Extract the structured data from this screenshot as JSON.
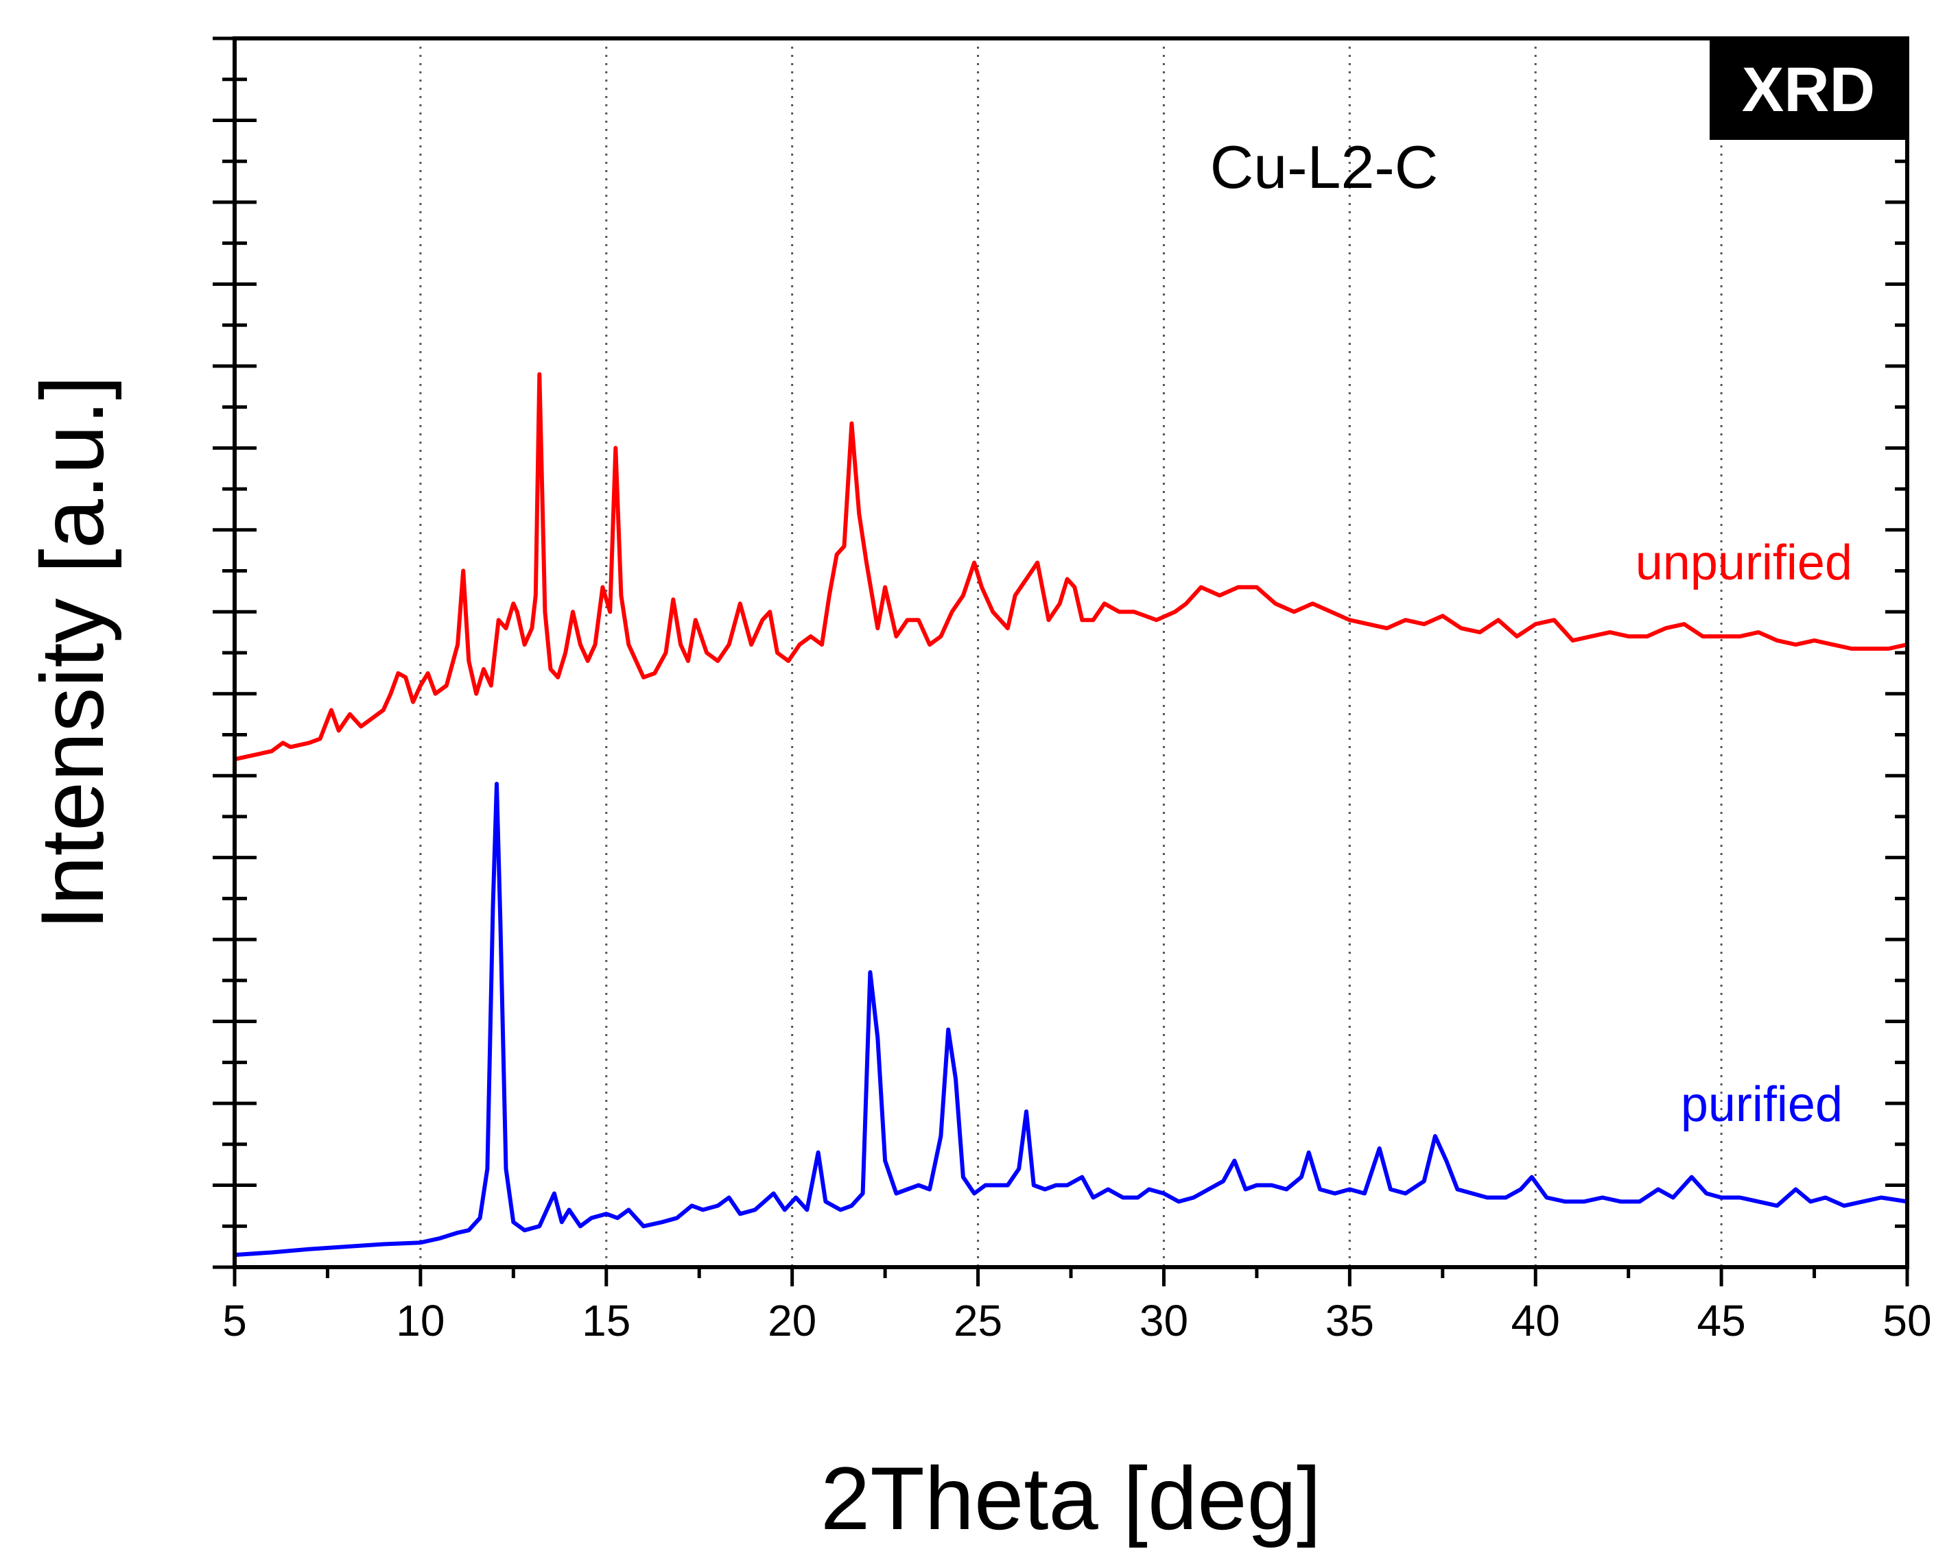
{
  "chart_data": {
    "type": "line",
    "title": "Cu-L2-C",
    "badge": "XRD",
    "xlabel": "2Theta [deg]",
    "ylabel": "Intensity [a.u.]",
    "xlim": [
      5,
      50
    ],
    "ylim": [
      0,
      15
    ],
    "x_ticks": [
      5,
      10,
      15,
      20,
      25,
      30,
      35,
      40,
      45,
      50
    ],
    "x_tick_labels": [
      "5",
      "10",
      "15",
      "20",
      "25",
      "30",
      "35",
      "40",
      "45",
      "50"
    ],
    "grid": "vertical dotted",
    "series": [
      {
        "name": "unpurified",
        "label": "unpurified",
        "color": "#ff0000",
        "points": [
          [
            5.0,
            6.2
          ],
          [
            6.0,
            6.3
          ],
          [
            6.3,
            6.4
          ],
          [
            6.5,
            6.35
          ],
          [
            7.0,
            6.4
          ],
          [
            7.3,
            6.45
          ],
          [
            7.6,
            6.8
          ],
          [
            7.8,
            6.55
          ],
          [
            8.1,
            6.75
          ],
          [
            8.4,
            6.6
          ],
          [
            9.0,
            6.8
          ],
          [
            9.2,
            7.0
          ],
          [
            9.4,
            7.25
          ],
          [
            9.6,
            7.2
          ],
          [
            9.8,
            6.9
          ],
          [
            10.0,
            7.1
          ],
          [
            10.2,
            7.25
          ],
          [
            10.4,
            7.0
          ],
          [
            10.7,
            7.1
          ],
          [
            11.0,
            7.6
          ],
          [
            11.15,
            8.5
          ],
          [
            11.3,
            7.4
          ],
          [
            11.5,
            7.0
          ],
          [
            11.7,
            7.3
          ],
          [
            11.9,
            7.1
          ],
          [
            12.1,
            7.9
          ],
          [
            12.3,
            7.8
          ],
          [
            12.5,
            8.1
          ],
          [
            12.6,
            8.0
          ],
          [
            12.8,
            7.6
          ],
          [
            13.0,
            7.8
          ],
          [
            13.1,
            8.2
          ],
          [
            13.2,
            10.9
          ],
          [
            13.35,
            8.0
          ],
          [
            13.5,
            7.3
          ],
          [
            13.7,
            7.2
          ],
          [
            13.9,
            7.5
          ],
          [
            14.1,
            8.0
          ],
          [
            14.3,
            7.6
          ],
          [
            14.5,
            7.4
          ],
          [
            14.7,
            7.6
          ],
          [
            14.9,
            8.3
          ],
          [
            15.1,
            8.0
          ],
          [
            15.25,
            10.0
          ],
          [
            15.4,
            8.2
          ],
          [
            15.6,
            7.6
          ],
          [
            15.8,
            7.4
          ],
          [
            16.0,
            7.2
          ],
          [
            16.3,
            7.25
          ],
          [
            16.6,
            7.5
          ],
          [
            16.8,
            8.15
          ],
          [
            17.0,
            7.6
          ],
          [
            17.2,
            7.4
          ],
          [
            17.4,
            7.9
          ],
          [
            17.7,
            7.5
          ],
          [
            18.0,
            7.4
          ],
          [
            18.3,
            7.6
          ],
          [
            18.6,
            8.1
          ],
          [
            18.9,
            7.6
          ],
          [
            19.2,
            7.9
          ],
          [
            19.4,
            8.0
          ],
          [
            19.6,
            7.5
          ],
          [
            19.9,
            7.4
          ],
          [
            20.2,
            7.6
          ],
          [
            20.5,
            7.7
          ],
          [
            20.8,
            7.6
          ],
          [
            21.0,
            8.2
          ],
          [
            21.2,
            8.7
          ],
          [
            21.4,
            8.8
          ],
          [
            21.6,
            10.3
          ],
          [
            21.8,
            9.2
          ],
          [
            22.0,
            8.6
          ],
          [
            22.3,
            7.8
          ],
          [
            22.5,
            8.3
          ],
          [
            22.8,
            7.7
          ],
          [
            23.1,
            7.9
          ],
          [
            23.4,
            7.9
          ],
          [
            23.7,
            7.6
          ],
          [
            24.0,
            7.7
          ],
          [
            24.3,
            8.0
          ],
          [
            24.6,
            8.2
          ],
          [
            24.9,
            8.6
          ],
          [
            25.1,
            8.3
          ],
          [
            25.4,
            8.0
          ],
          [
            25.8,
            7.8
          ],
          [
            26.0,
            8.2
          ],
          [
            26.3,
            8.4
          ],
          [
            26.6,
            8.6
          ],
          [
            26.9,
            7.9
          ],
          [
            27.2,
            8.1
          ],
          [
            27.4,
            8.4
          ],
          [
            27.6,
            8.3
          ],
          [
            27.8,
            7.9
          ],
          [
            28.1,
            7.9
          ],
          [
            28.4,
            8.1
          ],
          [
            28.8,
            8.0
          ],
          [
            29.2,
            8.0
          ],
          [
            29.5,
            7.95
          ],
          [
            29.8,
            7.9
          ],
          [
            30.3,
            8.0
          ],
          [
            30.6,
            8.1
          ],
          [
            31.0,
            8.3
          ],
          [
            31.5,
            8.2
          ],
          [
            32.0,
            8.3
          ],
          [
            32.5,
            8.3
          ],
          [
            33.0,
            8.1
          ],
          [
            33.5,
            8.0
          ],
          [
            34.0,
            8.1
          ],
          [
            34.5,
            8.0
          ],
          [
            35.0,
            7.9
          ],
          [
            35.5,
            7.85
          ],
          [
            36.0,
            7.8
          ],
          [
            36.5,
            7.9
          ],
          [
            37.0,
            7.85
          ],
          [
            37.5,
            7.95
          ],
          [
            38.0,
            7.8
          ],
          [
            38.5,
            7.75
          ],
          [
            39.0,
            7.9
          ],
          [
            39.5,
            7.7
          ],
          [
            40.0,
            7.85
          ],
          [
            40.5,
            7.9
          ],
          [
            41.0,
            7.65
          ],
          [
            41.5,
            7.7
          ],
          [
            42.0,
            7.75
          ],
          [
            42.5,
            7.7
          ],
          [
            43.0,
            7.7
          ],
          [
            43.5,
            7.8
          ],
          [
            44.0,
            7.85
          ],
          [
            44.5,
            7.7
          ],
          [
            45.0,
            7.7
          ],
          [
            45.5,
            7.7
          ],
          [
            46.0,
            7.75
          ],
          [
            46.5,
            7.65
          ],
          [
            47.0,
            7.6
          ],
          [
            47.5,
            7.65
          ],
          [
            48.0,
            7.6
          ],
          [
            48.5,
            7.55
          ],
          [
            49.0,
            7.55
          ],
          [
            49.5,
            7.55
          ],
          [
            50.0,
            7.6
          ]
        ]
      },
      {
        "name": "purified",
        "label": "purified",
        "color": "#0000ff",
        "points": [
          [
            5.0,
            0.15
          ],
          [
            6.0,
            0.18
          ],
          [
            7.0,
            0.22
          ],
          [
            8.0,
            0.25
          ],
          [
            9.0,
            0.28
          ],
          [
            10.0,
            0.3
          ],
          [
            10.5,
            0.35
          ],
          [
            11.0,
            0.42
          ],
          [
            11.3,
            0.45
          ],
          [
            11.6,
            0.6
          ],
          [
            11.8,
            1.2
          ],
          [
            11.95,
            4.4
          ],
          [
            12.05,
            5.9
          ],
          [
            12.15,
            4.2
          ],
          [
            12.3,
            1.2
          ],
          [
            12.5,
            0.55
          ],
          [
            12.8,
            0.45
          ],
          [
            13.2,
            0.5
          ],
          [
            13.6,
            0.9
          ],
          [
            13.8,
            0.55
          ],
          [
            14.0,
            0.7
          ],
          [
            14.3,
            0.5
          ],
          [
            14.6,
            0.6
          ],
          [
            15.0,
            0.65
          ],
          [
            15.3,
            0.6
          ],
          [
            15.6,
            0.7
          ],
          [
            16.0,
            0.5
          ],
          [
            16.5,
            0.55
          ],
          [
            16.9,
            0.6
          ],
          [
            17.3,
            0.75
          ],
          [
            17.6,
            0.7
          ],
          [
            18.0,
            0.75
          ],
          [
            18.3,
            0.85
          ],
          [
            18.6,
            0.65
          ],
          [
            19.0,
            0.7
          ],
          [
            19.5,
            0.9
          ],
          [
            19.8,
            0.7
          ],
          [
            20.1,
            0.85
          ],
          [
            20.4,
            0.7
          ],
          [
            20.7,
            1.4
          ],
          [
            20.9,
            0.8
          ],
          [
            21.3,
            0.7
          ],
          [
            21.6,
            0.75
          ],
          [
            21.9,
            0.9
          ],
          [
            22.1,
            3.6
          ],
          [
            22.3,
            2.8
          ],
          [
            22.5,
            1.3
          ],
          [
            22.8,
            0.9
          ],
          [
            23.1,
            0.95
          ],
          [
            23.4,
            1.0
          ],
          [
            23.7,
            0.95
          ],
          [
            24.0,
            1.6
          ],
          [
            24.2,
            2.9
          ],
          [
            24.4,
            2.3
          ],
          [
            24.6,
            1.1
          ],
          [
            24.9,
            0.9
          ],
          [
            25.2,
            1.0
          ],
          [
            25.5,
            1.0
          ],
          [
            25.8,
            1.0
          ],
          [
            26.1,
            1.2
          ],
          [
            26.3,
            1.9
          ],
          [
            26.5,
            1.0
          ],
          [
            26.8,
            0.95
          ],
          [
            27.1,
            1.0
          ],
          [
            27.4,
            1.0
          ],
          [
            27.8,
            1.1
          ],
          [
            28.1,
            0.85
          ],
          [
            28.5,
            0.95
          ],
          [
            28.9,
            0.85
          ],
          [
            29.3,
            0.85
          ],
          [
            29.6,
            0.95
          ],
          [
            30.0,
            0.9
          ],
          [
            30.4,
            0.8
          ],
          [
            30.8,
            0.85
          ],
          [
            31.2,
            0.95
          ],
          [
            31.6,
            1.05
          ],
          [
            31.9,
            1.3
          ],
          [
            32.2,
            0.95
          ],
          [
            32.5,
            1.0
          ],
          [
            32.9,
            1.0
          ],
          [
            33.3,
            0.95
          ],
          [
            33.7,
            1.1
          ],
          [
            33.9,
            1.4
          ],
          [
            34.2,
            0.95
          ],
          [
            34.6,
            0.9
          ],
          [
            35.0,
            0.95
          ],
          [
            35.4,
            0.9
          ],
          [
            35.8,
            1.45
          ],
          [
            36.1,
            0.95
          ],
          [
            36.5,
            0.9
          ],
          [
            37.0,
            1.05
          ],
          [
            37.3,
            1.6
          ],
          [
            37.6,
            1.3
          ],
          [
            37.9,
            0.95
          ],
          [
            38.3,
            0.9
          ],
          [
            38.7,
            0.85
          ],
          [
            39.2,
            0.85
          ],
          [
            39.6,
            0.95
          ],
          [
            39.9,
            1.1
          ],
          [
            40.3,
            0.85
          ],
          [
            40.8,
            0.8
          ],
          [
            41.3,
            0.8
          ],
          [
            41.8,
            0.85
          ],
          [
            42.3,
            0.8
          ],
          [
            42.8,
            0.8
          ],
          [
            43.3,
            0.95
          ],
          [
            43.7,
            0.85
          ],
          [
            44.2,
            1.1
          ],
          [
            44.6,
            0.9
          ],
          [
            45.0,
            0.85
          ],
          [
            45.5,
            0.85
          ],
          [
            46.0,
            0.8
          ],
          [
            46.5,
            0.75
          ],
          [
            47.0,
            0.95
          ],
          [
            47.4,
            0.8
          ],
          [
            47.8,
            0.85
          ],
          [
            48.3,
            0.75
          ],
          [
            48.8,
            0.8
          ],
          [
            49.3,
            0.85
          ],
          [
            50.0,
            0.8
          ]
        ]
      }
    ]
  }
}
